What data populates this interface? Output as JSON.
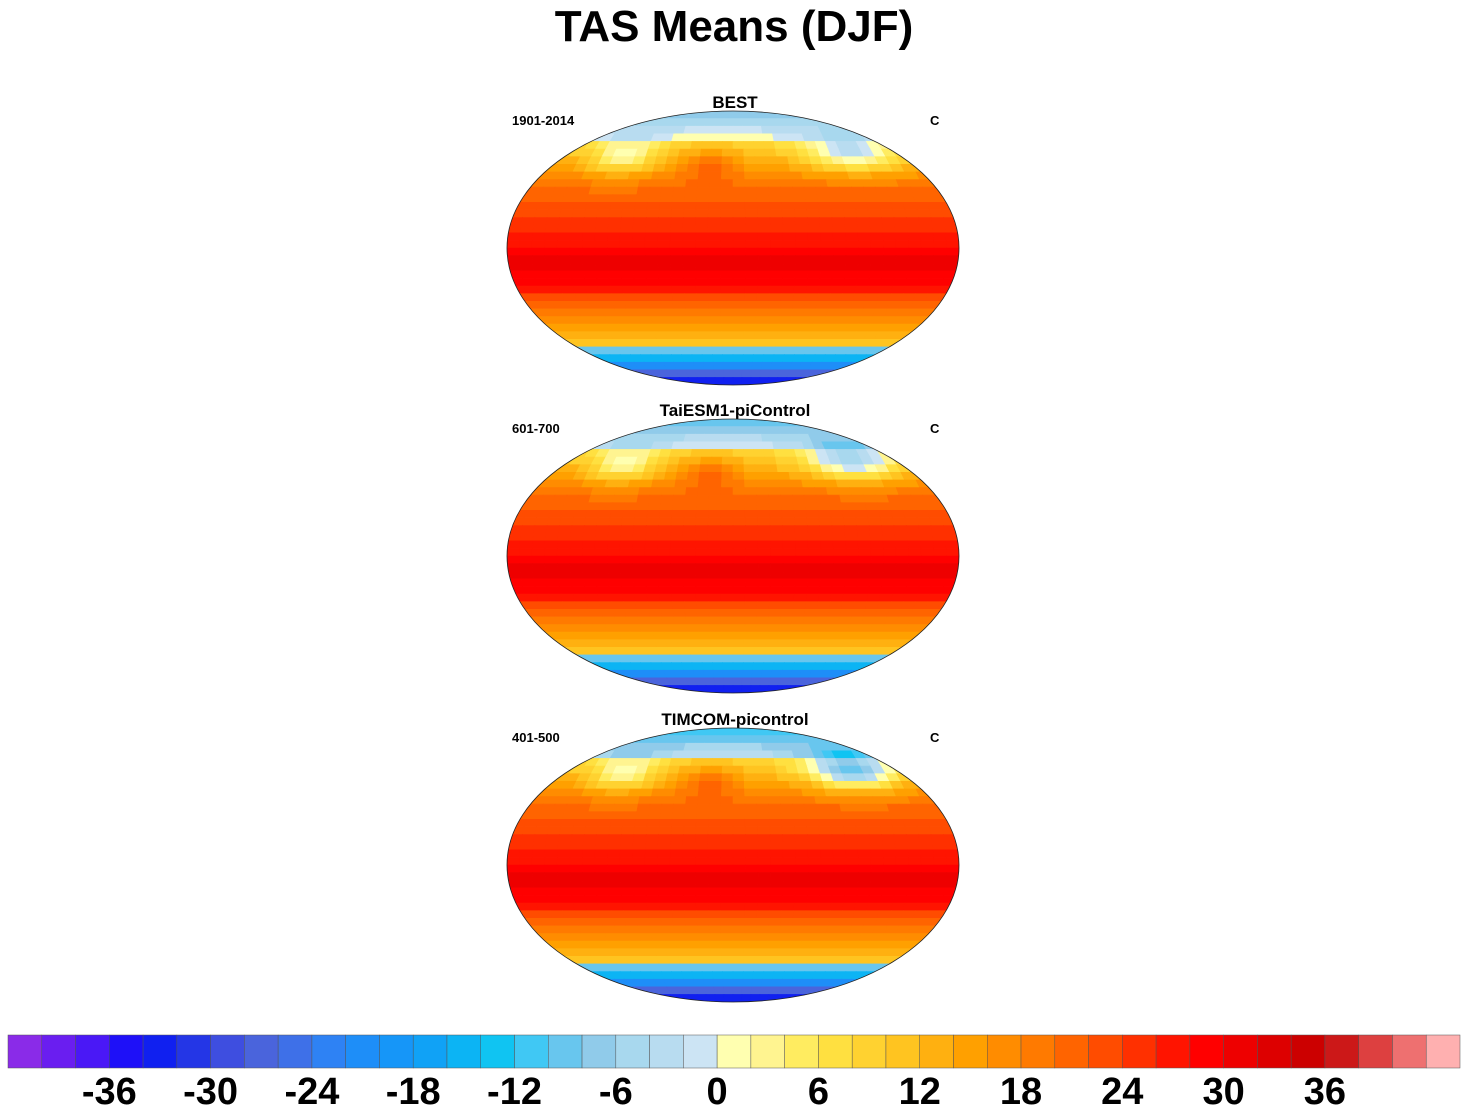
{
  "title": "TAS Means (DJF)",
  "panels": [
    {
      "title": "BEST",
      "period": "1901-2014",
      "units": "C",
      "polar_shift": 0
    },
    {
      "title": "TaiESM1-piControl",
      "period": "601-700",
      "units": "C",
      "polar_shift": 1
    },
    {
      "title": "TIMCOM-picontrol",
      "period": "401-500",
      "units": "C",
      "polar_shift": 2
    }
  ],
  "colorbar": {
    "colors": [
      "#8a2be8",
      "#6a1ef0",
      "#4a18f6",
      "#1e10f8",
      "#1020f0",
      "#2436e6",
      "#3e4ee0",
      "#4a64dc",
      "#3e70e8",
      "#2e82f4",
      "#1e8ef8",
      "#1696f8",
      "#10a2f6",
      "#0cb4f4",
      "#10c4f2",
      "#40c8f4",
      "#68c6ee",
      "#90cbea",
      "#a8d8ee",
      "#b8dcf0",
      "#cce4f4",
      "#ffffb0",
      "#fff490",
      "#ffec60",
      "#ffe040",
      "#ffd230",
      "#ffc420",
      "#ffb010",
      "#ffa000",
      "#ff8c00",
      "#ff7a00",
      "#ff6400",
      "#ff4c00",
      "#ff3000",
      "#ff1400",
      "#ff0000",
      "#ee0000",
      "#dd0000",
      "#cc0000",
      "#cc1818",
      "#dd4040",
      "#ee7070",
      "#ffb0b0"
    ],
    "labels": [
      "-36",
      "-30",
      "-24",
      "-18",
      "-12",
      "-6",
      "0",
      "6",
      "12",
      "18",
      "24",
      "30",
      "36"
    ],
    "label_values": [
      -36,
      -30,
      -24,
      -18,
      -12,
      -6,
      0,
      6,
      12,
      18,
      24,
      30,
      36
    ],
    "min": -42,
    "max": 44,
    "step": 2
  }
}
